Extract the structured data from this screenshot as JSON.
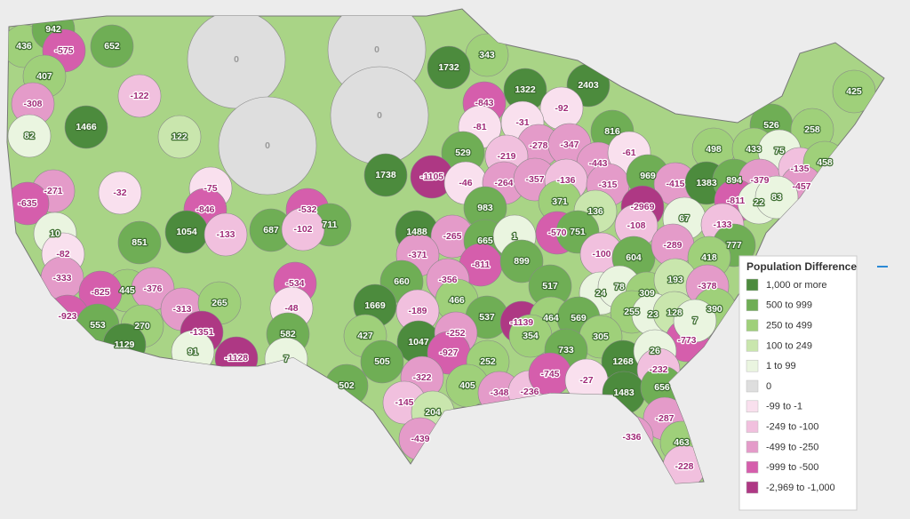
{
  "legend": {
    "title": "Population Difference",
    "items": [
      {
        "label": "1,000 or more",
        "color": "#4c8b3d"
      },
      {
        "label": "500 to 999",
        "color": "#6fae55"
      },
      {
        "label": "250 to 499",
        "color": "#9fd07a"
      },
      {
        "label": "100 to 249",
        "color": "#c9e6ad"
      },
      {
        "label": "1 to 99",
        "color": "#eaf5e0"
      },
      {
        "label": "0",
        "color": "#dedede"
      },
      {
        "label": "-99 to -1",
        "color": "#f9e0ee"
      },
      {
        "label": "-249 to -100",
        "color": "#f1c0de"
      },
      {
        "label": "-499 to -250",
        "color": "#e49bc9"
      },
      {
        "label": "-999 to -500",
        "color": "#d55eac"
      },
      {
        "label": "-2,969 to -1,000",
        "color": "#ae3884"
      }
    ]
  },
  "regions": [
    {
      "value": 436,
      "color": "#9fd07a"
    },
    {
      "value": 942,
      "color": "#6fae55"
    },
    {
      "value": -575,
      "color": "#d55eac"
    },
    {
      "value": 652,
      "color": "#6fae55"
    },
    {
      "value": 407,
      "color": "#9fd07a"
    },
    {
      "value": -308,
      "color": "#e49bc9"
    },
    {
      "value": -122,
      "color": "#f1c0de"
    },
    {
      "value": 82,
      "color": "#eaf5e0"
    },
    {
      "value": 1466,
      "color": "#4c8b3d"
    },
    {
      "value": 122,
      "color": "#c9e6ad"
    },
    {
      "value": 0,
      "color": "#dedede"
    },
    {
      "value": 0,
      "color": "#dedede"
    },
    {
      "value": 0,
      "color": "#dedede"
    },
    {
      "value": 0,
      "color": "#dedede"
    },
    {
      "value": 343,
      "color": "#9fd07a"
    },
    {
      "value": 1732,
      "color": "#4c8b3d"
    },
    {
      "value": 1322,
      "color": "#4c8b3d"
    },
    {
      "value": 2403,
      "color": "#4c8b3d"
    },
    {
      "value": -843,
      "color": "#d55eac"
    },
    {
      "value": -92,
      "color": "#f9e0ee"
    },
    {
      "value": -31,
      "color": "#f9e0ee"
    },
    {
      "value": -81,
      "color": "#f9e0ee"
    },
    {
      "value": 425,
      "color": "#9fd07a"
    },
    {
      "value": 526,
      "color": "#6fae55"
    },
    {
      "value": 816,
      "color": "#6fae55"
    },
    {
      "value": 258,
      "color": "#9fd07a"
    },
    {
      "value": -278,
      "color": "#e49bc9"
    },
    {
      "value": -347,
      "color": "#e49bc9"
    },
    {
      "value": 529,
      "color": "#6fae55"
    },
    {
      "value": -219,
      "color": "#f1c0de"
    },
    {
      "value": 498,
      "color": "#9fd07a"
    },
    {
      "value": 433,
      "color": "#9fd07a"
    },
    {
      "value": 75,
      "color": "#eaf5e0"
    },
    {
      "value": -443,
      "color": "#e49bc9"
    },
    {
      "value": -61,
      "color": "#f9e0ee"
    },
    {
      "value": 1738,
      "color": "#4c8b3d"
    },
    {
      "value": -1105,
      "color": "#ae3884"
    },
    {
      "value": -32,
      "color": "#f9e0ee"
    },
    {
      "value": -271,
      "color": "#e49bc9"
    },
    {
      "value": -75,
      "color": "#f9e0ee"
    },
    {
      "value": -46,
      "color": "#f9e0ee"
    },
    {
      "value": -264,
      "color": "#e49bc9"
    },
    {
      "value": -357,
      "color": "#e49bc9"
    },
    {
      "value": -136,
      "color": "#f1c0de"
    },
    {
      "value": -315,
      "color": "#e49bc9"
    },
    {
      "value": 969,
      "color": "#6fae55"
    },
    {
      "value": -415,
      "color": "#e49bc9"
    },
    {
      "value": 1383,
      "color": "#4c8b3d"
    },
    {
      "value": 894,
      "color": "#6fae55"
    },
    {
      "value": -379,
      "color": "#e49bc9"
    },
    {
      "value": -135,
      "color": "#f1c0de"
    },
    {
      "value": 458,
      "color": "#9fd07a"
    },
    {
      "value": -457,
      "color": "#e49bc9"
    },
    {
      "value": -635,
      "color": "#d55eac"
    },
    {
      "value": -846,
      "color": "#d55eac"
    },
    {
      "value": -532,
      "color": "#d55eac"
    },
    {
      "value": 711,
      "color": "#6fae55"
    },
    {
      "value": 983,
      "color": "#6fae55"
    },
    {
      "value": 371,
      "color": "#9fd07a"
    },
    {
      "value": -2969,
      "color": "#ae3884"
    },
    {
      "value": -811,
      "color": "#d55eac"
    },
    {
      "value": 22,
      "color": "#eaf5e0"
    },
    {
      "value": 83,
      "color": "#eaf5e0"
    },
    {
      "value": 1054,
      "color": "#4c8b3d"
    },
    {
      "value": -133,
      "color": "#f1c0de"
    },
    {
      "value": 687,
      "color": "#6fae55"
    },
    {
      "value": -102,
      "color": "#f1c0de"
    },
    {
      "value": 1488,
      "color": "#4c8b3d"
    },
    {
      "value": -265,
      "color": "#e49bc9"
    },
    {
      "value": 136,
      "color": "#c9e6ad"
    },
    {
      "value": 665,
      "color": "#6fae55"
    },
    {
      "value": 1,
      "color": "#eaf5e0"
    },
    {
      "value": -570,
      "color": "#d55eac"
    },
    {
      "value": 751,
      "color": "#6fae55"
    },
    {
      "value": -108,
      "color": "#f1c0de"
    },
    {
      "value": 67,
      "color": "#eaf5e0"
    },
    {
      "value": -133,
      "color": "#f1c0de"
    },
    {
      "value": 10,
      "color": "#eaf5e0"
    },
    {
      "value": 851,
      "color": "#6fae55"
    },
    {
      "value": -82,
      "color": "#f9e0ee"
    },
    {
      "value": -371,
      "color": "#e49bc9"
    },
    {
      "value": -811,
      "color": "#d55eac"
    },
    {
      "value": 899,
      "color": "#6fae55"
    },
    {
      "value": -100,
      "color": "#f1c0de"
    },
    {
      "value": 604,
      "color": "#6fae55"
    },
    {
      "value": -289,
      "color": "#e49bc9"
    },
    {
      "value": 777,
      "color": "#6fae55"
    },
    {
      "value": 418,
      "color": "#9fd07a"
    },
    {
      "value": -333,
      "color": "#e49bc9"
    },
    {
      "value": 445,
      "color": "#9fd07a"
    },
    {
      "value": -376,
      "color": "#e49bc9"
    },
    {
      "value": -534,
      "color": "#d55eac"
    },
    {
      "value": 660,
      "color": "#6fae55"
    },
    {
      "value": -356,
      "color": "#e49bc9"
    },
    {
      "value": 466,
      "color": "#9fd07a"
    },
    {
      "value": 517,
      "color": "#6fae55"
    },
    {
      "value": 24,
      "color": "#eaf5e0"
    },
    {
      "value": 78,
      "color": "#eaf5e0"
    },
    {
      "value": 309,
      "color": "#9fd07a"
    },
    {
      "value": 193,
      "color": "#c9e6ad"
    },
    {
      "value": -378,
      "color": "#e49bc9"
    },
    {
      "value": 390,
      "color": "#9fd07a"
    },
    {
      "value": -825,
      "color": "#d55eac"
    },
    {
      "value": -313,
      "color": "#e49bc9"
    },
    {
      "value": 265,
      "color": "#9fd07a"
    },
    {
      "value": -48,
      "color": "#f9e0ee"
    },
    {
      "value": 1669,
      "color": "#4c8b3d"
    },
    {
      "value": -189,
      "color": "#f1c0de"
    },
    {
      "value": 537,
      "color": "#6fae55"
    },
    {
      "value": -1139,
      "color": "#ae3884"
    },
    {
      "value": 464,
      "color": "#9fd07a"
    },
    {
      "value": 569,
      "color": "#6fae55"
    },
    {
      "value": 255,
      "color": "#9fd07a"
    },
    {
      "value": 23,
      "color": "#eaf5e0"
    },
    {
      "value": 128,
      "color": "#c9e6ad"
    },
    {
      "value": -773,
      "color": "#d55eac"
    },
    {
      "value": 7,
      "color": "#eaf5e0"
    },
    {
      "value": -923,
      "color": "#d55eac"
    },
    {
      "value": 553,
      "color": "#6fae55"
    },
    {
      "value": 270,
      "color": "#9fd07a"
    },
    {
      "value": -1351,
      "color": "#ae3884"
    },
    {
      "value": 582,
      "color": "#6fae55"
    },
    {
      "value": 427,
      "color": "#9fd07a"
    },
    {
      "value": 1047,
      "color": "#4c8b3d"
    },
    {
      "value": -252,
      "color": "#e49bc9"
    },
    {
      "value": 354,
      "color": "#9fd07a"
    },
    {
      "value": 305,
      "color": "#9fd07a"
    },
    {
      "value": -927,
      "color": "#d55eac"
    },
    {
      "value": 91,
      "color": "#eaf5e0"
    },
    {
      "value": -1128,
      "color": "#ae3884"
    },
    {
      "value": 505,
      "color": "#6fae55"
    },
    {
      "value": 252,
      "color": "#9fd07a"
    },
    {
      "value": 733,
      "color": "#6fae55"
    },
    {
      "value": 1268,
      "color": "#4c8b3d"
    },
    {
      "value": 26,
      "color": "#eaf5e0"
    },
    {
      "value": 1129,
      "color": "#4c8b3d"
    },
    {
      "value": 7,
      "color": "#eaf5e0"
    },
    {
      "value": -322,
      "color": "#e49bc9"
    },
    {
      "value": -145,
      "color": "#f1c0de"
    },
    {
      "value": 204,
      "color": "#c9e6ad"
    },
    {
      "value": 405,
      "color": "#9fd07a"
    },
    {
      "value": -348,
      "color": "#e49bc9"
    },
    {
      "value": -236,
      "color": "#f1c0de"
    },
    {
      "value": -745,
      "color": "#d55eac"
    },
    {
      "value": -27,
      "color": "#f9e0ee"
    },
    {
      "value": -232,
      "color": "#f1c0de"
    },
    {
      "value": 502,
      "color": "#6fae55"
    },
    {
      "value": 1483,
      "color": "#4c8b3d"
    },
    {
      "value": 656,
      "color": "#6fae55"
    },
    {
      "value": -287,
      "color": "#e49bc9"
    },
    {
      "value": -336,
      "color": "#e49bc9"
    },
    {
      "value": 463,
      "color": "#9fd07a"
    },
    {
      "value": -439,
      "color": "#e49bc9"
    },
    {
      "value": -228,
      "color": "#f1c0de"
    }
  ]
}
